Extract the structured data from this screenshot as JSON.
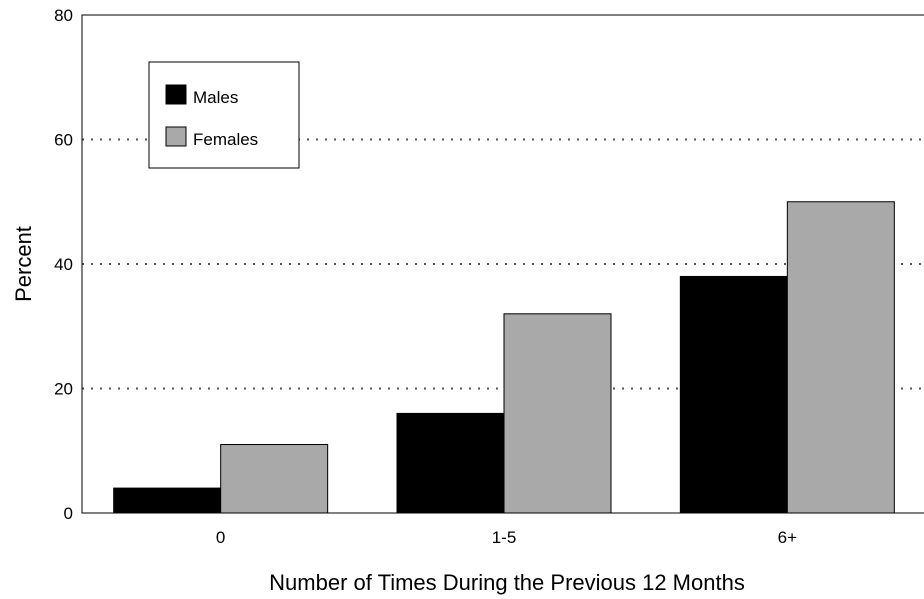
{
  "chart_data": {
    "type": "bar",
    "title": "",
    "xlabel": "Number of Times During the Previous 12 Months",
    "ylabel": "Percent",
    "categories": [
      "0",
      "1-5",
      "6+"
    ],
    "series": [
      {
        "name": "Males",
        "values": [
          4,
          16,
          38
        ],
        "color": "#000000"
      },
      {
        "name": "Females",
        "values": [
          11,
          32,
          50
        ],
        "color": "#a9a9a9"
      }
    ],
    "ylim": [
      0,
      80
    ],
    "yticks": [
      0,
      20,
      40,
      60,
      80
    ],
    "grid": "horizontal dotted",
    "legend": "top-left"
  }
}
